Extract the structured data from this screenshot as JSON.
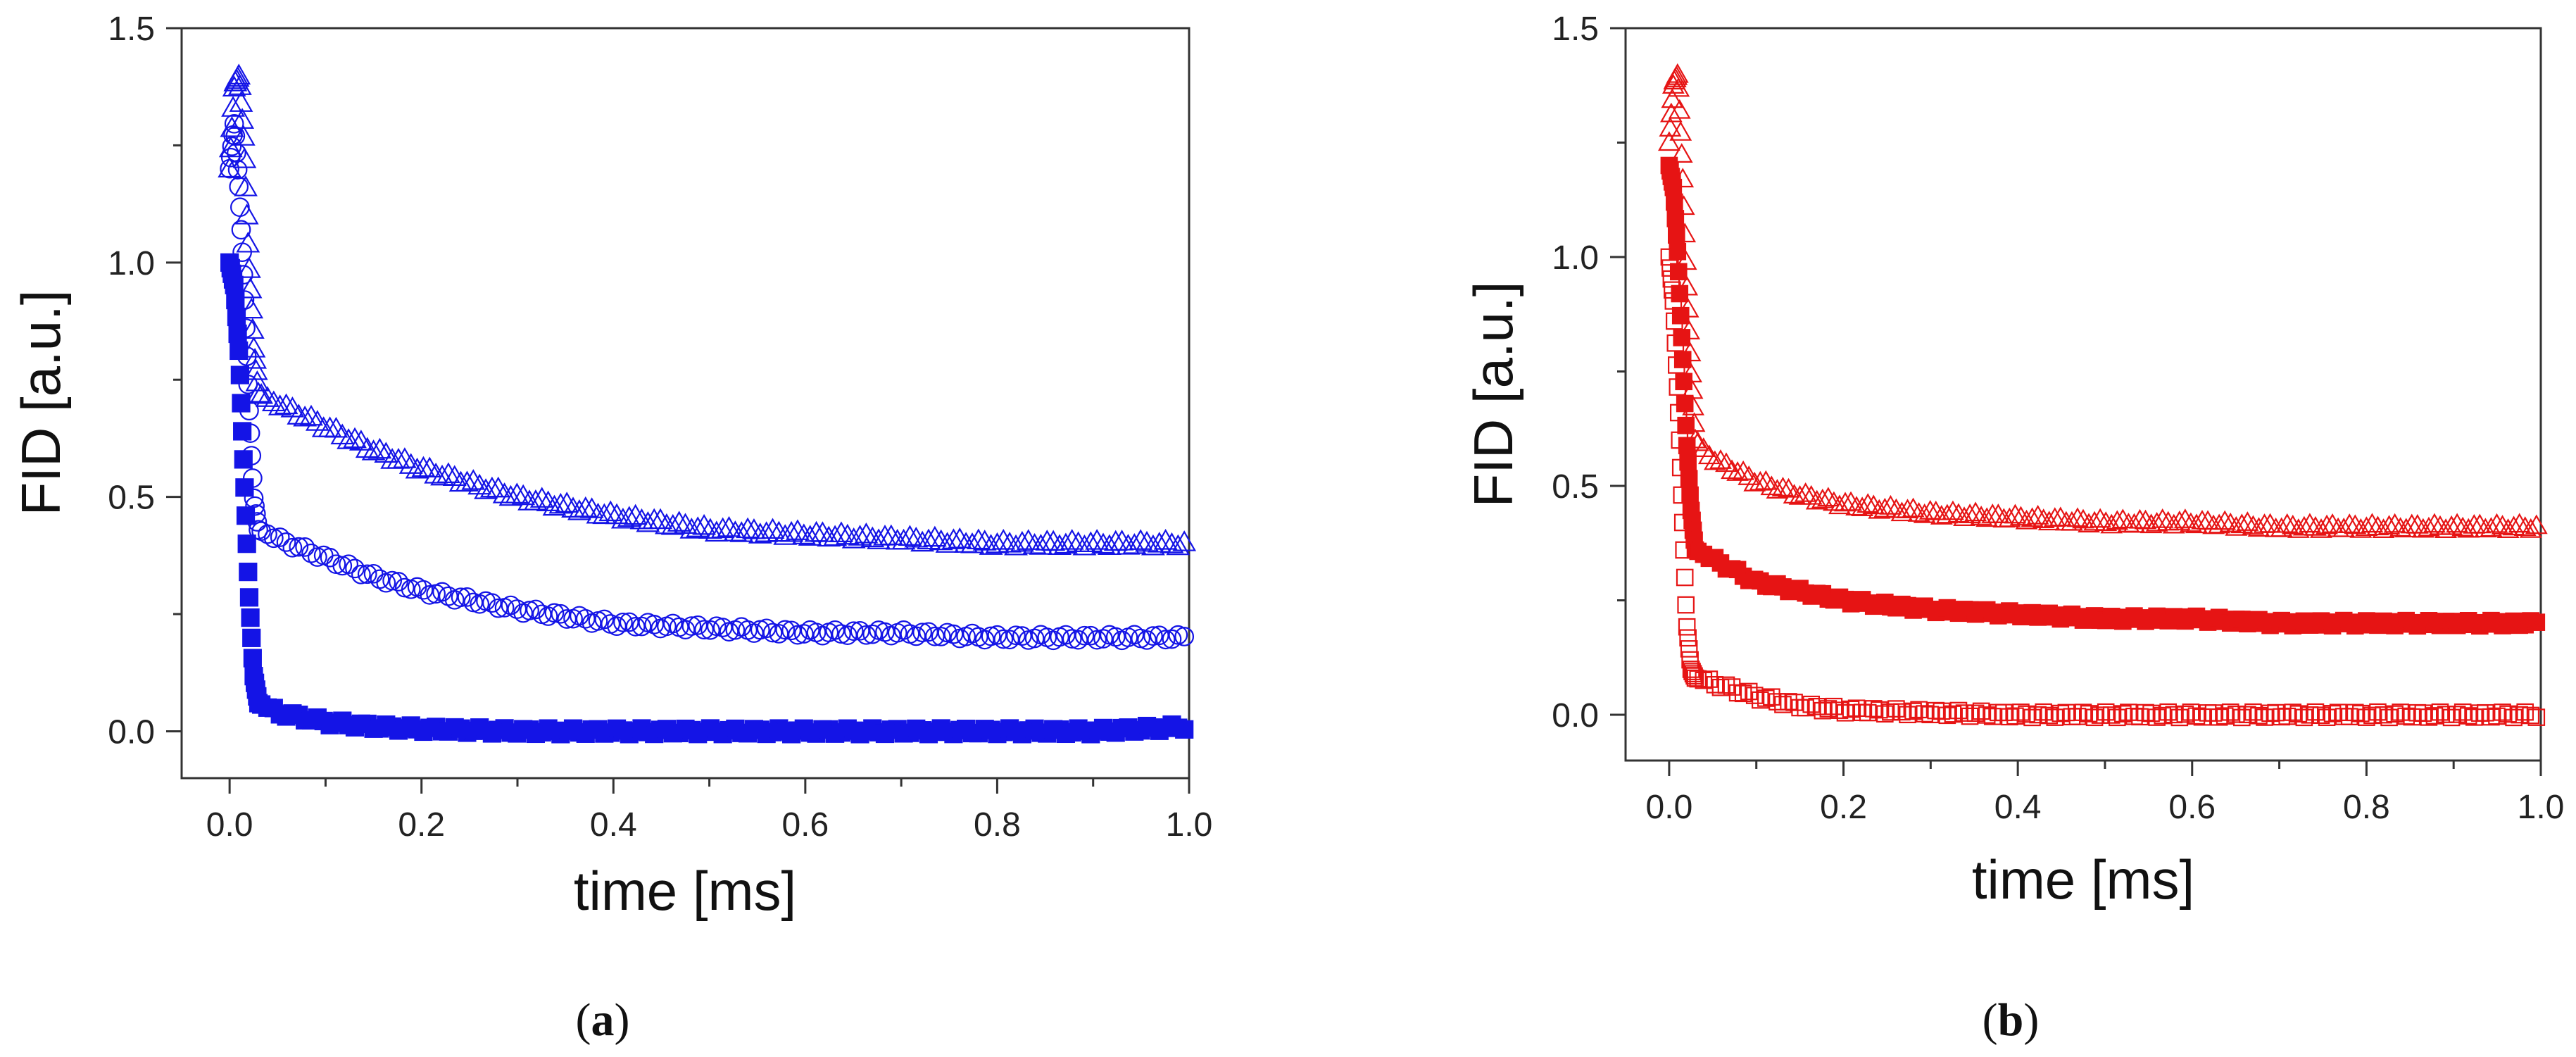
{
  "figure": {
    "panel_labels": [
      {
        "open": "(",
        "letter": "a",
        "close": ")"
      },
      {
        "open": "(",
        "letter": "b",
        "close": ")"
      }
    ]
  },
  "chart_data": [
    {
      "type": "scatter",
      "panel": "a",
      "title": "",
      "xlabel": "time [ms]",
      "ylabel": "FID [a.u.]",
      "xlim": [
        -0.05,
        1.0
      ],
      "ylim": [
        -0.1,
        1.5
      ],
      "xticks": [
        "0.0",
        "0.2",
        "0.4",
        "0.6",
        "0.8",
        "1.0"
      ],
      "yticks": [
        "0.0",
        "0.5",
        "1.0",
        "1.5"
      ],
      "color": "#1414e6",
      "series": [
        {
          "name": "triangles (open)",
          "marker": "triangle",
          "filled": false,
          "x": [
            0.0,
            0.005,
            0.01,
            0.015,
            0.02,
            0.025,
            0.03,
            0.05,
            0.1,
            0.15,
            0.2,
            0.3,
            0.4,
            0.5,
            0.6,
            0.7,
            0.8,
            0.9,
            1.0
          ],
          "y": [
            1.2,
            1.38,
            1.4,
            1.25,
            1.0,
            0.82,
            0.72,
            0.7,
            0.65,
            0.6,
            0.56,
            0.5,
            0.46,
            0.43,
            0.42,
            0.41,
            0.4,
            0.4,
            0.4
          ]
        },
        {
          "name": "circles (open)",
          "marker": "circle",
          "filled": false,
          "x": [
            0.0,
            0.005,
            0.01,
            0.015,
            0.02,
            0.025,
            0.03,
            0.05,
            0.1,
            0.15,
            0.2,
            0.3,
            0.4,
            0.5,
            0.6,
            0.7,
            0.8,
            0.9,
            1.0
          ],
          "y": [
            1.2,
            1.3,
            1.15,
            0.95,
            0.7,
            0.5,
            0.43,
            0.41,
            0.37,
            0.33,
            0.3,
            0.26,
            0.23,
            0.22,
            0.21,
            0.21,
            0.2,
            0.2,
            0.2
          ]
        },
        {
          "name": "squares (filled)",
          "marker": "square",
          "filled": true,
          "x": [
            0.0,
            0.005,
            0.01,
            0.015,
            0.02,
            0.025,
            0.03,
            0.05,
            0.1,
            0.15,
            0.2,
            0.3,
            0.4,
            0.5,
            0.6,
            0.7,
            0.8,
            0.9,
            1.0
          ],
          "y": [
            1.0,
            0.95,
            0.8,
            0.55,
            0.3,
            0.12,
            0.06,
            0.04,
            0.02,
            0.01,
            0.005,
            0.0,
            0.0,
            0.0,
            0.0,
            0.0,
            0.0,
            0.0,
            0.01
          ]
        }
      ]
    },
    {
      "type": "scatter",
      "panel": "b",
      "title": "",
      "xlabel": "time [ms]",
      "ylabel": "FID [a.u.]",
      "xlim": [
        -0.05,
        1.0
      ],
      "ylim": [
        -0.1,
        1.5
      ],
      "xticks": [
        "0.0",
        "0.2",
        "0.4",
        "0.6",
        "0.8",
        "1.0"
      ],
      "yticks": [
        "0.0",
        "0.5",
        "1.0",
        "1.5"
      ],
      "color": "#e61414",
      "series": [
        {
          "name": "triangles (open)",
          "marker": "triangle",
          "filled": false,
          "x": [
            0.0,
            0.005,
            0.01,
            0.015,
            0.02,
            0.025,
            0.03,
            0.05,
            0.1,
            0.15,
            0.2,
            0.3,
            0.4,
            0.5,
            0.6,
            0.7,
            0.8,
            0.9,
            1.0
          ],
          "y": [
            1.25,
            1.38,
            1.4,
            1.2,
            0.95,
            0.75,
            0.6,
            0.56,
            0.51,
            0.48,
            0.46,
            0.44,
            0.43,
            0.42,
            0.42,
            0.41,
            0.41,
            0.41,
            0.41
          ]
        },
        {
          "name": "squares (filled)",
          "marker": "square",
          "filled": true,
          "x": [
            0.0,
            0.005,
            0.01,
            0.015,
            0.02,
            0.025,
            0.03,
            0.05,
            0.1,
            0.15,
            0.2,
            0.3,
            0.4,
            0.5,
            0.6,
            0.7,
            0.8,
            0.9,
            1.0
          ],
          "y": [
            1.2,
            1.15,
            1.0,
            0.8,
            0.6,
            0.45,
            0.36,
            0.34,
            0.29,
            0.27,
            0.25,
            0.23,
            0.22,
            0.21,
            0.21,
            0.2,
            0.2,
            0.2,
            0.2
          ]
        },
        {
          "name": "squares (open)",
          "marker": "square",
          "filled": false,
          "x": [
            0.0,
            0.005,
            0.01,
            0.015,
            0.02,
            0.025,
            0.03,
            0.05,
            0.1,
            0.15,
            0.2,
            0.3,
            0.4,
            0.5,
            0.6,
            0.7,
            0.8,
            0.9,
            1.0
          ],
          "y": [
            1.0,
            0.9,
            0.7,
            0.45,
            0.2,
            0.1,
            0.08,
            0.07,
            0.04,
            0.02,
            0.01,
            0.005,
            0.0,
            0.0,
            0.0,
            0.0,
            0.0,
            0.0,
            0.0
          ]
        }
      ]
    }
  ]
}
